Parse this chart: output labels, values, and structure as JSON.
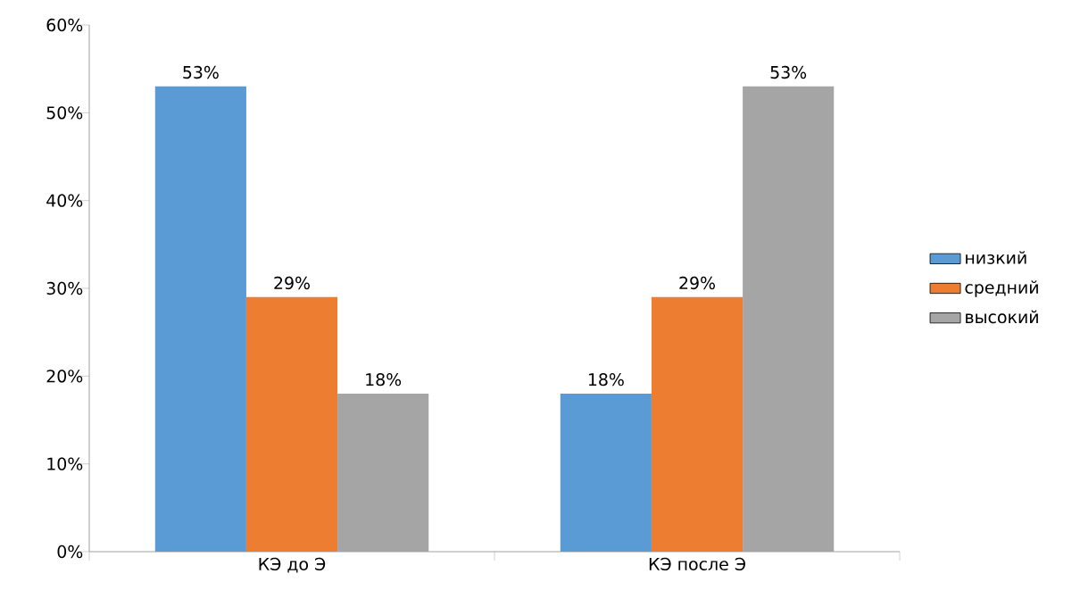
{
  "chart_data": {
    "type": "bar",
    "categories": [
      "КЭ до Э",
      "КЭ после Э"
    ],
    "series": [
      {
        "name": "низкий",
        "color": "#5b9bd5",
        "values": [
          53,
          18
        ],
        "value_labels": [
          "53%",
          "18%"
        ]
      },
      {
        "name": "средний",
        "color": "#ed7d31",
        "values": [
          29,
          29
        ],
        "value_labels": [
          "29%",
          "29%"
        ]
      },
      {
        "name": "высокий",
        "color": "#a5a5a5",
        "values": [
          18,
          53
        ],
        "value_labels": [
          "18%",
          "53%"
        ]
      }
    ],
    "ylim": [
      0,
      60
    ],
    "yticks": [
      {
        "value": 0,
        "label": "0%"
      },
      {
        "value": 10,
        "label": "10%"
      },
      {
        "value": 20,
        "label": "20%"
      },
      {
        "value": 30,
        "label": "30%"
      },
      {
        "value": 40,
        "label": "40%"
      },
      {
        "value": 50,
        "label": "50%"
      },
      {
        "value": 60,
        "label": "60%"
      }
    ],
    "grid": false,
    "legend": "right"
  }
}
